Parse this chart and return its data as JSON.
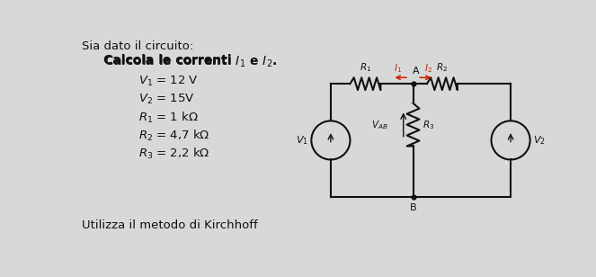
{
  "title_line1": "Sia dato il circuito:",
  "title_line2": "Calcola le correnti $\\mathit{I}_1$ e $\\mathit{I}_2$.",
  "params": [
    "$V_1$ = 12 V",
    "$V_2$ = 15V",
    "$R_1$ = 1 kΩ",
    "$R_2$ = 4,7 kΩ",
    "$R_3$ = 2,2 kΩ"
  ],
  "footer": "Utilizza il metodo di Kirchhoff",
  "bg_color": "#d8d8d8",
  "text_color": "#111111",
  "circuit_color": "#111111",
  "red_color": "#cc2200",
  "fig_w": 6.63,
  "fig_h": 3.08
}
